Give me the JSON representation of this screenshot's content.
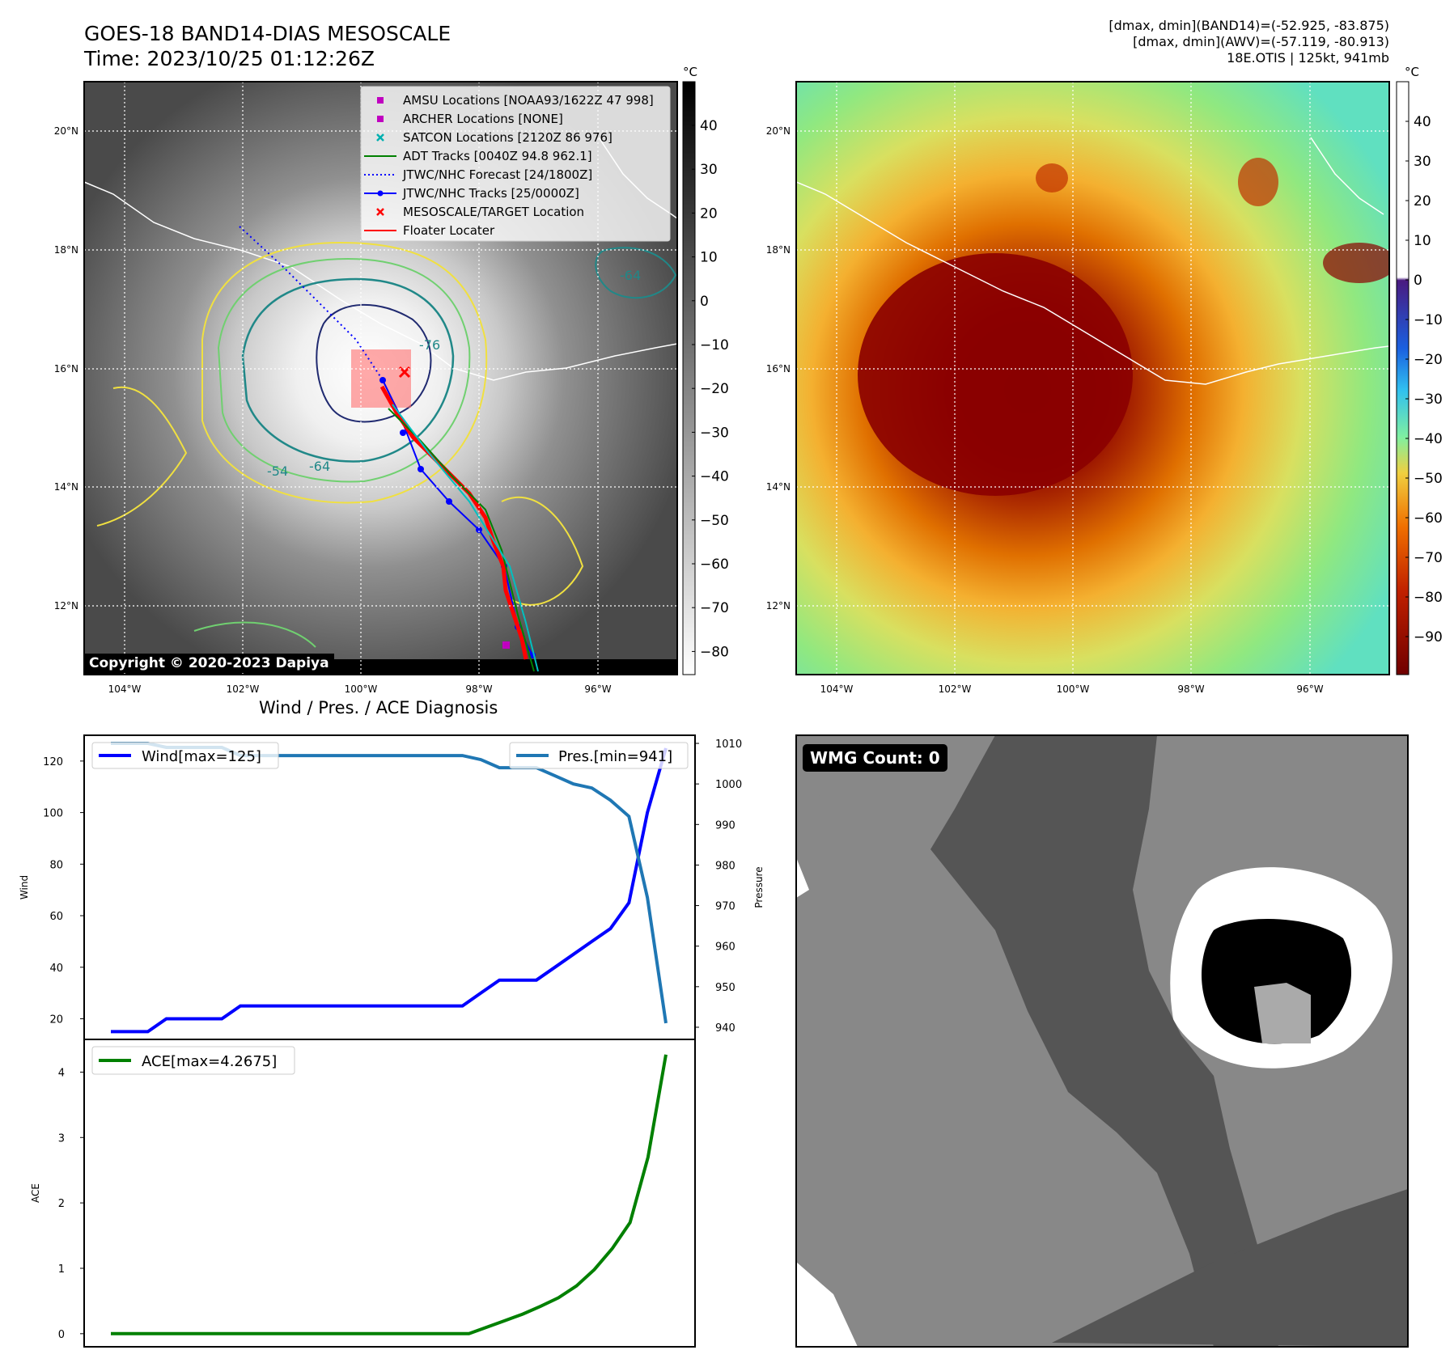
{
  "header": {
    "title_line1": "GOES-18 BAND14-DIAS MESOSCALE",
    "title_line2": "Time: 2023/10/25 01:12:26Z",
    "stats_line1": "[dmax, dmin](BAND14)=(-52.925, -83.875)",
    "stats_line2": "[dmax, dmin](AWV)=(-57.119, -80.913)",
    "stats_line3": "18E.OTIS | 125kt, 941mb"
  },
  "map_axes": {
    "lat_labels": [
      "20°N",
      "18°N",
      "16°N",
      "14°N",
      "12°N"
    ],
    "lon_labels": [
      "104°W",
      "102°W",
      "100°W",
      "98°W",
      "96°W"
    ]
  },
  "ir_colorbar": {
    "unit": "°C",
    "ticks": [
      "40",
      "30",
      "20",
      "10",
      "0",
      "−10",
      "−20",
      "−30",
      "−40",
      "−50",
      "−60",
      "−70",
      "−80"
    ]
  },
  "wv_colorbar": {
    "unit": "°C",
    "ticks": [
      "40",
      "30",
      "20",
      "10",
      "0",
      "−10",
      "−20",
      "−30",
      "−40",
      "−50",
      "−60",
      "−70",
      "−80",
      "−90"
    ]
  },
  "legend": {
    "items": [
      {
        "label": "AMSU Locations [NOAA93/1622Z 47 998]",
        "color": "#c000c0",
        "marker": "square"
      },
      {
        "label": "ARCHER Locations [NONE]",
        "color": "#c000c0",
        "marker": "square"
      },
      {
        "label": "SATCON Locations [2120Z 86 976]",
        "color": "#00b0b0",
        "marker": "x"
      },
      {
        "label": "ADT Tracks [0040Z 94.8 962.1]",
        "color": "#008000",
        "marker": "line"
      },
      {
        "label": "JTWC/NHC Forecast [24/1800Z]",
        "color": "#0000ff",
        "marker": "dotted"
      },
      {
        "label": "JTWC/NHC Tracks [25/0000Z]",
        "color": "#0000ff",
        "marker": "line-dot"
      },
      {
        "label": "MESOSCALE/TARGET Location",
        "color": "#ff0000",
        "marker": "x"
      },
      {
        "label": "Floater Locater",
        "color": "#ff0000",
        "marker": "line"
      }
    ]
  },
  "contour_labels": [
    "-76",
    "-64",
    "-64",
    "-54",
    "-54",
    "-64"
  ],
  "copyright": "Copyright © 2020-2023 Dapiya",
  "diagnosis_title": "Wind / Pres. / ACE Diagnosis",
  "wmg": {
    "count_label": "WMG Count: 0"
  },
  "colors": {
    "wind": "#0000ff",
    "pressure": "#1f77b4",
    "ace": "#008000",
    "contour_yellow": "#f0e040",
    "contour_green": "#70d070",
    "contour_teal": "#208888",
    "contour_navy": "#202a70"
  },
  "chart_data": [
    {
      "type": "line",
      "title": "Wind / Pres. / ACE Diagnosis",
      "ylabel": "Wind",
      "y2label": "Pressure",
      "ylim": [
        12,
        130
      ],
      "y2lim": [
        937,
        1012
      ],
      "yticks": [
        20,
        40,
        60,
        80,
        100,
        120
      ],
      "y2ticks": [
        940,
        950,
        960,
        970,
        980,
        990,
        1000,
        1010
      ],
      "series": [
        {
          "name": "Wind[max=125]",
          "axis": "left",
          "color": "#0000ff",
          "values": [
            15,
            15,
            15,
            20,
            20,
            20,
            20,
            25,
            25,
            25,
            25,
            25,
            25,
            25,
            25,
            25,
            25,
            25,
            25,
            25,
            30,
            35,
            35,
            35,
            40,
            45,
            50,
            55,
            65,
            100,
            125
          ]
        },
        {
          "name": "Pres.[min=941]",
          "axis": "right",
          "color": "#1f77b4",
          "values": [
            1010,
            1010,
            1010,
            1009,
            1009,
            1009,
            1009,
            1007,
            1007,
            1007,
            1007,
            1007,
            1007,
            1007,
            1007,
            1007,
            1007,
            1007,
            1007,
            1007,
            1006,
            1004,
            1004,
            1004,
            1002,
            1000,
            999,
            996,
            992,
            972,
            941
          ]
        }
      ]
    },
    {
      "type": "line",
      "ylabel": "ACE",
      "ylim": [
        -0.2,
        4.5
      ],
      "yticks": [
        0,
        1,
        2,
        3,
        4
      ],
      "series": [
        {
          "name": "ACE[max=4.2675]",
          "color": "#008000",
          "values": [
            0,
            0,
            0,
            0,
            0,
            0,
            0,
            0,
            0,
            0,
            0,
            0,
            0,
            0,
            0,
            0,
            0,
            0,
            0,
            0,
            0,
            0.1,
            0.2,
            0.3,
            0.42,
            0.55,
            0.73,
            0.98,
            1.3,
            1.7,
            2.7,
            4.2675
          ]
        }
      ]
    }
  ]
}
